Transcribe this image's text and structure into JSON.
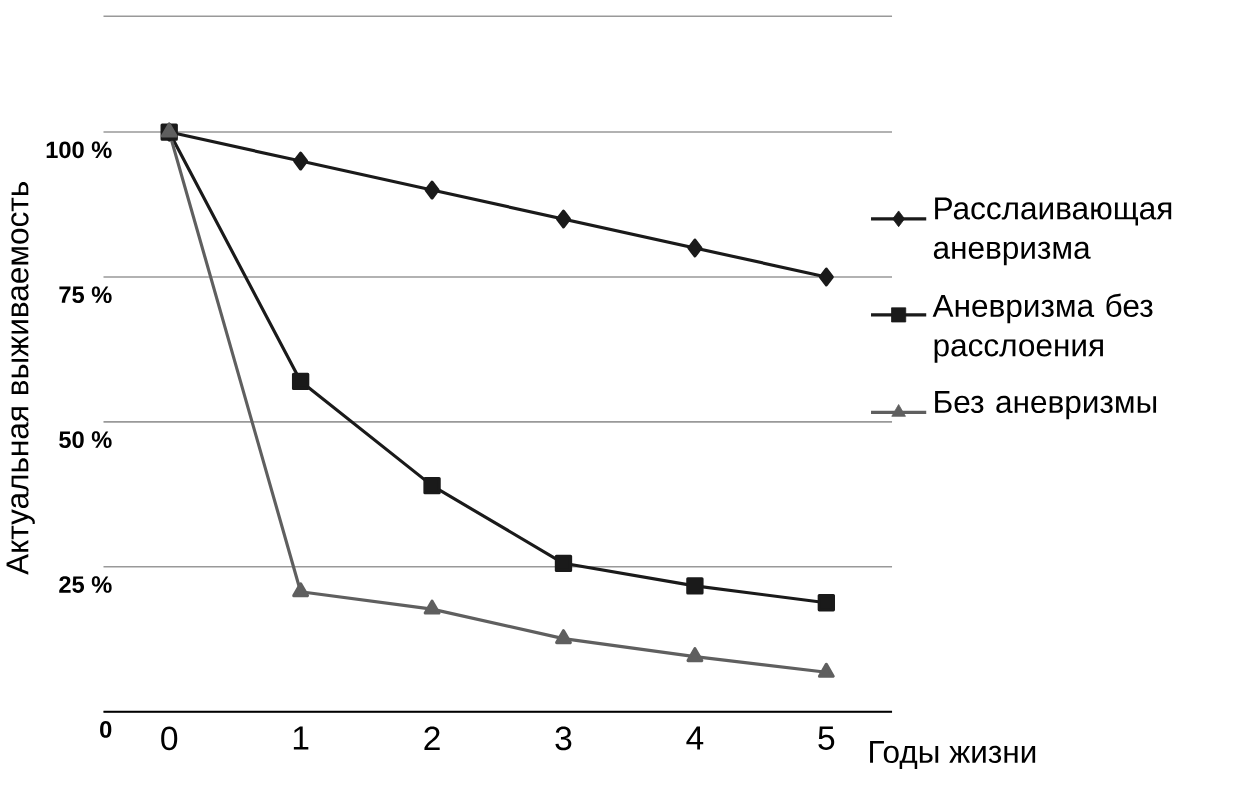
{
  "chart_data": {
    "type": "line",
    "ylabel": "Актуальная выживаемость",
    "xlabel": "Годы жизни",
    "categories": [
      "0",
      "1",
      "2",
      "3",
      "4",
      "5"
    ],
    "series": [
      {
        "name": "Расслаивающая аневризма",
        "color": "#1a1a1a",
        "marker": "diamond",
        "values": [
          100,
          95,
          90,
          85,
          80,
          75
        ]
      },
      {
        "name": "Аневризма без расслоения",
        "color": "#1a1a1a",
        "marker": "square",
        "values": [
          100,
          57,
          39,
          25.6,
          21.7,
          18.8
        ]
      },
      {
        "name": "Без аневризмы",
        "color": "#5f5f5f",
        "marker": "triangle",
        "values": [
          100,
          20.7,
          17.7,
          12.6,
          9.5,
          6.8
        ]
      }
    ],
    "ylim": [
      0,
      120
    ],
    "yticks": [
      {
        "value": 0,
        "label": "0"
      },
      {
        "value": 25,
        "label": "25 %"
      },
      {
        "value": 50,
        "label": "50 %"
      },
      {
        "value": 75,
        "label": "75 %"
      },
      {
        "value": 100,
        "label": "100 %"
      },
      {
        "value": 120,
        "label": null
      }
    ],
    "grid": "y",
    "legend": "right",
    "line_style": "solid"
  }
}
